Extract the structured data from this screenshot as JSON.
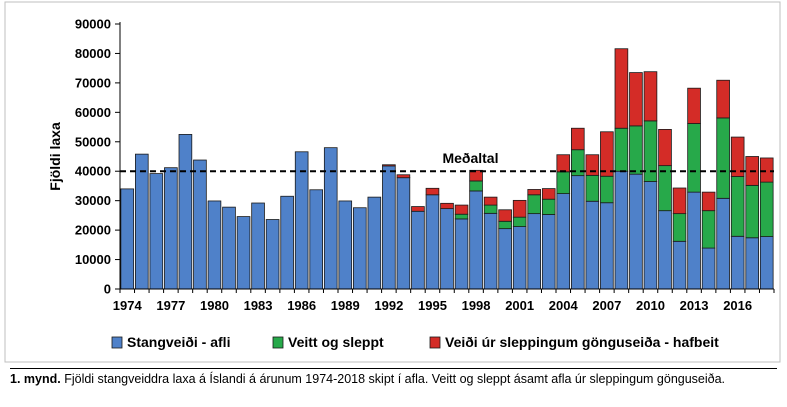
{
  "chart_data": {
    "type": "bar",
    "stacked": true,
    "ylabel": "Fjöldi laxa",
    "xlabel": "",
    "ylim": [
      0,
      90000
    ],
    "yticks": [
      0,
      10000,
      20000,
      30000,
      40000,
      50000,
      60000,
      70000,
      80000,
      90000
    ],
    "xtick_labels": [
      "1974",
      "1977",
      "1980",
      "1983",
      "1986",
      "1989",
      "1992",
      "1995",
      "1998",
      "2001",
      "2004",
      "2007",
      "2010",
      "2013",
      "2016"
    ],
    "grid": false,
    "legend_position": "bottom",
    "reference_line": {
      "label": "Meðaltal",
      "value": 40000,
      "style": "dashed"
    },
    "categories": [
      1974,
      1975,
      1976,
      1977,
      1978,
      1979,
      1980,
      1981,
      1982,
      1983,
      1984,
      1985,
      1986,
      1987,
      1988,
      1989,
      1990,
      1991,
      1992,
      1993,
      1994,
      1995,
      1996,
      1997,
      1998,
      1999,
      2000,
      2001,
      2002,
      2003,
      2004,
      2005,
      2006,
      2007,
      2008,
      2009,
      2010,
      2011,
      2012,
      2013,
      2014,
      2015,
      2016,
      2017,
      2018
    ],
    "series": [
      {
        "name": "Stangveiði - afli",
        "color": "#4f81c9",
        "values": [
          34000,
          45800,
          39200,
          41200,
          52500,
          43800,
          29900,
          27800,
          24600,
          29200,
          23600,
          31500,
          46600,
          33700,
          48000,
          29900,
          27600,
          31200,
          41800,
          37800,
          26400,
          32000,
          27300,
          23800,
          33300,
          25700,
          20500,
          21200,
          25600,
          25300,
          32400,
          38500,
          29800,
          29300,
          40000,
          39000,
          36500,
          26600,
          16200,
          32900,
          13900,
          30800,
          17900,
          17400,
          17800
        ]
      },
      {
        "name": "Veitt og sleppt",
        "color": "#27a94a",
        "values": [
          0,
          0,
          0,
          0,
          0,
          0,
          0,
          0,
          0,
          0,
          0,
          0,
          0,
          0,
          0,
          0,
          0,
          0,
          0,
          0,
          0,
          0,
          0,
          1600,
          3400,
          2800,
          2500,
          3200,
          6400,
          5200,
          7400,
          8800,
          8800,
          9000,
          14600,
          16400,
          20600,
          15300,
          9400,
          23300,
          12700,
          27300,
          20300,
          17800,
          18500
        ]
      },
      {
        "name": "Veiði úr sleppingum gönguseiða - hafbeit",
        "color": "#d42c27",
        "values": [
          0,
          0,
          0,
          0,
          0,
          0,
          0,
          0,
          0,
          0,
          0,
          0,
          0,
          0,
          0,
          0,
          0,
          0,
          400,
          1000,
          1600,
          2200,
          1800,
          3100,
          3600,
          2700,
          3900,
          5700,
          1800,
          3600,
          5800,
          7300,
          7000,
          15100,
          27000,
          18100,
          16700,
          12300,
          8700,
          12000,
          6300,
          12800,
          13400,
          9800,
          8200
        ]
      }
    ]
  },
  "caption": {
    "number": "1. mynd.",
    "text": "Fjöldi stangveiddra laxa á Íslandi á árunum 1974-2018 skipt í afla. Veitt og sleppt ásamt afla úr sleppingum gönguseiða."
  }
}
